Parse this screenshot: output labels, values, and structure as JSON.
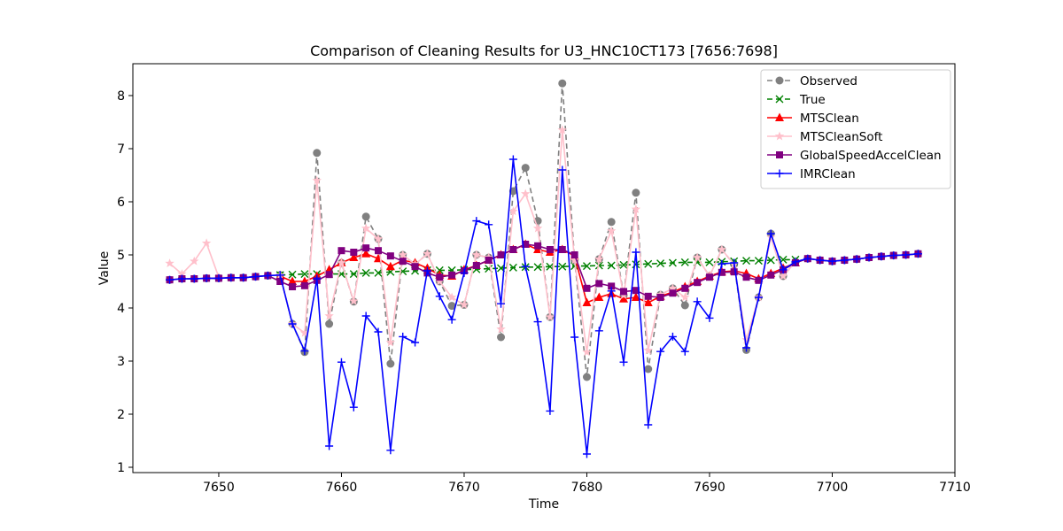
{
  "chart_data": {
    "type": "line",
    "title": "Comparison of Cleaning Results for U3_HNC10CT173 [7656:7698]",
    "xlabel": "Time",
    "ylabel": "Value",
    "xlim": [
      7643.0,
      7710.0
    ],
    "ylim": [
      0.9,
      8.6
    ],
    "xticks": [
      7650,
      7660,
      7670,
      7680,
      7690,
      7700,
      7710
    ],
    "yticks": [
      1,
      2,
      3,
      4,
      5,
      6,
      7,
      8
    ],
    "grid": false,
    "legend_position": "top-right",
    "x": [
      7646,
      7647,
      7648,
      7649,
      7650,
      7651,
      7652,
      7653,
      7654,
      7655,
      7656,
      7657,
      7658,
      7659,
      7660,
      7661,
      7662,
      7663,
      7664,
      7665,
      7666,
      7667,
      7668,
      7669,
      7670,
      7671,
      7672,
      7673,
      7674,
      7675,
      7676,
      7677,
      7678,
      7679,
      7680,
      7681,
      7682,
      7683,
      7684,
      7685,
      7686,
      7687,
      7688,
      7689,
      7690,
      7691,
      7692,
      7693,
      7694,
      7695,
      7696,
      7697,
      7698,
      7699,
      7700,
      7701,
      7702,
      7703,
      7704,
      7705,
      7706,
      7707
    ],
    "series": [
      {
        "name": "Observed",
        "color": "#808080",
        "dash": "6,4",
        "marker": "circle",
        "values": [
          4.53,
          4.55,
          4.55,
          4.56,
          4.56,
          4.57,
          4.57,
          4.59,
          4.61,
          4.62,
          3.7,
          3.17,
          6.92,
          3.7,
          4.85,
          4.12,
          5.72,
          5.3,
          2.95,
          5.0,
          4.82,
          5.02,
          4.5,
          4.04,
          4.06,
          5.0,
          4.95,
          3.45,
          6.2,
          6.64,
          5.64,
          3.83,
          8.23,
          4.9,
          2.7,
          4.92,
          5.62,
          4.24,
          6.17,
          2.85,
          4.25,
          4.37,
          4.05,
          4.95,
          4.6,
          5.1,
          4.82,
          3.21,
          4.2,
          5.4,
          4.6,
          4.87,
          4.93,
          4.9,
          4.88,
          4.9,
          4.92,
          4.95,
          4.97,
          4.99,
          5.0,
          5.02
        ]
      },
      {
        "name": "True",
        "color": "#008000",
        "dash": "6,4",
        "marker": "x",
        "values": [
          null,
          null,
          null,
          null,
          null,
          null,
          null,
          null,
          null,
          4.62,
          4.63,
          4.64,
          4.64,
          4.64,
          4.64,
          4.64,
          4.66,
          4.66,
          4.68,
          4.69,
          4.7,
          4.71,
          4.71,
          4.71,
          4.72,
          4.73,
          4.74,
          4.75,
          4.76,
          4.77,
          4.77,
          4.78,
          4.78,
          4.79,
          4.79,
          4.8,
          4.8,
          4.81,
          4.82,
          4.83,
          4.84,
          4.85,
          4.86,
          4.86,
          4.86,
          4.87,
          4.88,
          4.89,
          4.89,
          4.9,
          4.91,
          4.91,
          null,
          null,
          null,
          null,
          null,
          null,
          null,
          null,
          null,
          null
        ]
      },
      {
        "name": "MTSClean",
        "color": "#ff0000",
        "dash": "",
        "marker": "triangle",
        "values": [
          null,
          null,
          null,
          null,
          null,
          null,
          null,
          null,
          null,
          4.6,
          4.5,
          4.5,
          4.6,
          4.72,
          4.85,
          4.95,
          5.02,
          4.93,
          4.78,
          4.9,
          4.85,
          4.75,
          4.62,
          4.6,
          4.72,
          4.8,
          4.9,
          5.0,
          5.1,
          5.2,
          5.1,
          5.05,
          5.1,
          4.98,
          4.1,
          4.2,
          4.27,
          4.17,
          4.2,
          4.1,
          4.22,
          4.3,
          4.4,
          4.5,
          4.6,
          4.68,
          4.7,
          4.65,
          4.55,
          4.65,
          4.75,
          4.85,
          null,
          null,
          null,
          null,
          null,
          null,
          null,
          null,
          null,
          null
        ]
      },
      {
        "name": "MTSCleanSoft",
        "color": "#ffc0cb",
        "dash": "",
        "marker": "star",
        "values": [
          4.84,
          4.64,
          4.88,
          5.22,
          4.58,
          4.57,
          4.57,
          4.59,
          4.61,
          4.62,
          3.7,
          3.53,
          6.4,
          3.85,
          4.85,
          4.13,
          5.5,
          5.3,
          3.35,
          5.0,
          4.82,
          5.02,
          4.5,
          4.2,
          4.06,
          5.0,
          4.95,
          3.6,
          5.82,
          6.15,
          5.5,
          3.83,
          7.35,
          4.9,
          3.17,
          4.92,
          5.45,
          4.24,
          5.86,
          3.2,
          4.25,
          4.37,
          4.2,
          4.95,
          4.6,
          5.1,
          4.82,
          3.4,
          4.2,
          5.33,
          4.6,
          4.87,
          4.93,
          4.9,
          4.88,
          4.9,
          4.92,
          4.95,
          4.97,
          4.99,
          5.0,
          5.02
        ]
      },
      {
        "name": "GlobalSpeedAccelClean",
        "color": "#800080",
        "dash": "",
        "marker": "square",
        "values": [
          4.53,
          4.55,
          4.55,
          4.56,
          4.56,
          4.57,
          4.57,
          4.59,
          4.61,
          4.5,
          4.4,
          4.42,
          4.52,
          4.63,
          5.08,
          5.05,
          5.13,
          5.08,
          4.98,
          4.88,
          4.78,
          4.66,
          4.58,
          4.62,
          4.7,
          4.8,
          4.9,
          5.0,
          5.1,
          5.2,
          5.17,
          5.1,
          5.1,
          5.0,
          4.37,
          4.46,
          4.41,
          4.31,
          4.33,
          4.22,
          4.2,
          4.28,
          4.37,
          4.48,
          4.58,
          4.67,
          4.68,
          4.58,
          4.52,
          4.62,
          4.72,
          4.85,
          4.93,
          4.9,
          4.88,
          4.9,
          4.92,
          4.95,
          4.97,
          4.99,
          5.0,
          5.02
        ]
      },
      {
        "name": "IMRClean",
        "color": "#0000ff",
        "dash": "",
        "marker": "plus",
        "values": [
          4.53,
          4.55,
          4.55,
          4.56,
          4.56,
          4.57,
          4.57,
          4.59,
          4.61,
          4.62,
          3.7,
          3.19,
          4.55,
          1.4,
          2.98,
          2.13,
          3.85,
          3.55,
          1.32,
          3.46,
          3.35,
          4.7,
          4.22,
          3.78,
          4.66,
          5.64,
          5.57,
          4.08,
          6.8,
          4.78,
          3.74,
          2.06,
          6.6,
          3.45,
          1.25,
          3.57,
          4.32,
          2.98,
          5.05,
          1.8,
          3.18,
          3.46,
          3.18,
          4.12,
          3.81,
          4.83,
          4.85,
          3.25,
          4.2,
          5.4,
          4.72,
          4.87,
          4.93,
          4.9,
          4.88,
          4.9,
          4.92,
          4.95,
          4.97,
          4.99,
          5.0,
          5.02
        ]
      }
    ]
  }
}
